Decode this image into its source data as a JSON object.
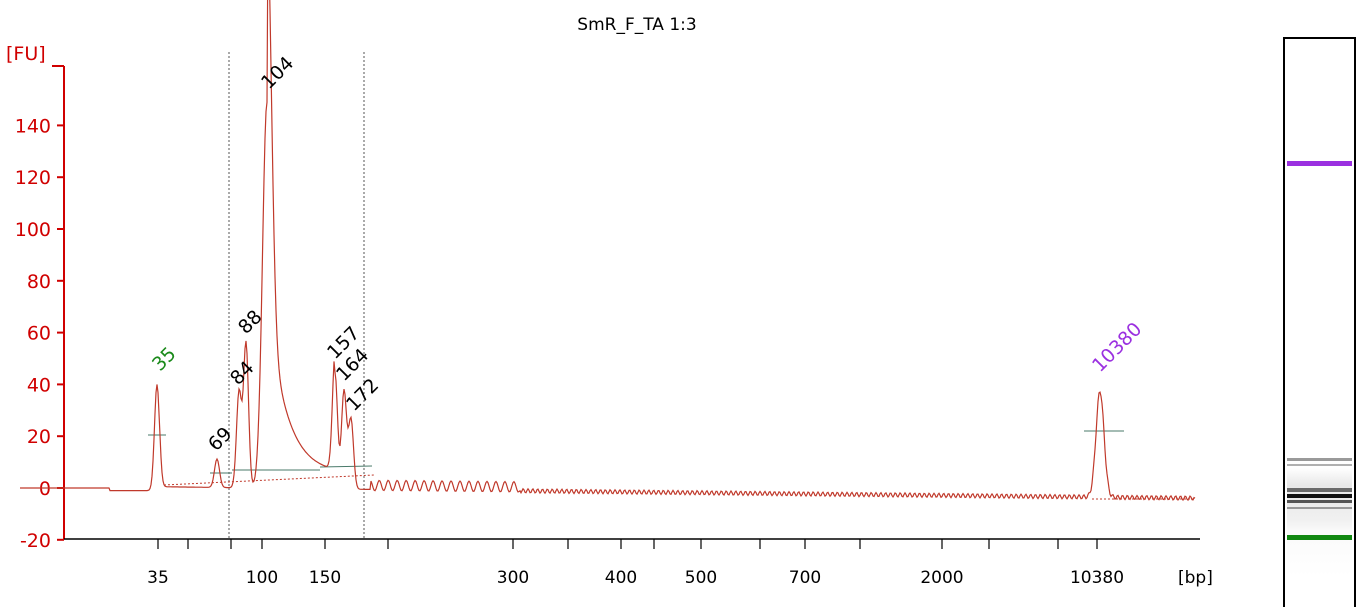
{
  "chart_data": {
    "type": "line",
    "title": "SmR_F_TA 1:3",
    "ylabel": "[FU]",
    "xlabel": "[bp]",
    "ylim": [
      -20,
      150
    ],
    "yticks": [
      "-20",
      "0",
      "20",
      "40",
      "60",
      "80",
      "100",
      "120",
      "140"
    ],
    "xticks": [
      "35",
      "100",
      "150",
      "300",
      "400",
      "500",
      "700",
      "2000",
      "10380"
    ],
    "grid": false,
    "peaks": [
      {
        "label": "35",
        "fu": 41,
        "color": "#1a8a1a"
      },
      {
        "label": "69",
        "fu": 11,
        "color": "#000000"
      },
      {
        "label": "84",
        "fu": 37,
        "color": "#000000"
      },
      {
        "label": "88",
        "fu": 56,
        "color": "#000000"
      },
      {
        "label": "104",
        "fu": 149,
        "color": "#000000"
      },
      {
        "label": "157",
        "fu": 45,
        "color": "#000000"
      },
      {
        "label": "164",
        "fu": 38,
        "color": "#000000"
      },
      {
        "label": "172",
        "fu": 27,
        "color": "#000000"
      },
      {
        "label": "10380",
        "fu": 41,
        "color": "#9b30e0"
      }
    ],
    "series": [
      {
        "color": "#c0392b"
      }
    ]
  },
  "gel": {
    "upper_marker_color": "#9b30e0",
    "lower_marker_color": "#118811"
  }
}
